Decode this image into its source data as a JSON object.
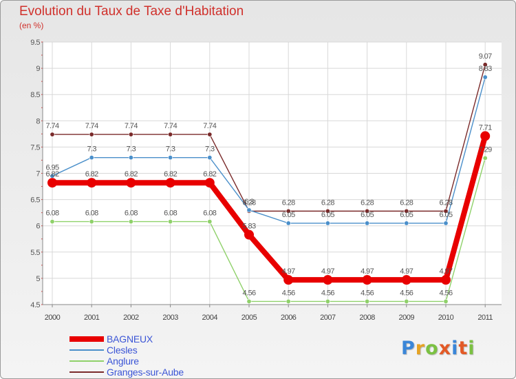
{
  "title": "Evolution du Taux de Taxe d'Habitation",
  "subtitle": "(en %)",
  "logo": {
    "text": "Proxiti",
    "colors": [
      "#3a86d8",
      "#e6a324",
      "#7bc142",
      "#e35a26",
      "#3a86d8",
      "#e35a26",
      "#7bc142"
    ]
  },
  "chart_data": {
    "type": "line",
    "title": "Evolution du Taux de Taxe d'Habitation",
    "ylabel": "(en %)",
    "xlabel": "",
    "x": [
      "2000",
      "2001",
      "2002",
      "2003",
      "2004",
      "2005",
      "2006",
      "2007",
      "2008",
      "2009",
      "2010",
      "2011"
    ],
    "ylim": [
      4.5,
      9.5
    ],
    "yticks": [
      "4.5",
      "5",
      "5.5",
      "6",
      "6.5",
      "7",
      "7.5",
      "8",
      "8.5",
      "9",
      "9.5"
    ],
    "grid": true,
    "legend": "bottom-left",
    "series": [
      {
        "name": "Granges-sur-Aube",
        "color": "#7a2a2a",
        "values": [
          7.74,
          7.74,
          7.74,
          7.74,
          7.74,
          6.28,
          6.28,
          6.28,
          6.28,
          6.28,
          6.28,
          9.07
        ],
        "labels": [
          "7.74",
          "7.74",
          "7.74",
          "7.74",
          "7.74",
          "6.28",
          "6.28",
          "6.28",
          "6.28",
          "6.28",
          "6.28",
          "9.07"
        ]
      },
      {
        "name": "Clesles",
        "color": "#4a8fca",
        "values": [
          6.95,
          7.3,
          7.3,
          7.3,
          7.3,
          6.3,
          6.05,
          6.05,
          6.05,
          6.05,
          6.05,
          8.83
        ],
        "labels": [
          "6.95",
          "7.3",
          "7.3",
          "7.3",
          "7.3",
          "6.3",
          "6.05",
          "6.05",
          "6.05",
          "6.05",
          "6.05",
          "8.83"
        ]
      },
      {
        "name": "Anglure",
        "color": "#8fd16a",
        "values": [
          6.08,
          6.08,
          6.08,
          6.08,
          6.08,
          4.56,
          4.56,
          4.56,
          4.56,
          4.56,
          4.56,
          7.29
        ],
        "labels": [
          "6.08",
          "6.08",
          "6.08",
          "6.08",
          "6.08",
          "4.56",
          "4.56",
          "4.56",
          "4.56",
          "4.56",
          "4.56",
          "7.29"
        ]
      },
      {
        "name": "BAGNEUX",
        "color": "#e80000",
        "values": [
          6.82,
          6.82,
          6.82,
          6.82,
          6.82,
          5.83,
          4.97,
          4.97,
          4.97,
          4.97,
          4.97,
          7.71
        ],
        "labels": [
          "6.82",
          "6.82",
          "6.82",
          "6.82",
          "6.82",
          "5.83",
          "4.97",
          "4.97",
          "4.97",
          "4.97",
          "4.97",
          "7.71"
        ]
      }
    ],
    "legend_order": [
      "BAGNEUX",
      "Clesles",
      "Anglure",
      "Granges-sur-Aube"
    ]
  }
}
